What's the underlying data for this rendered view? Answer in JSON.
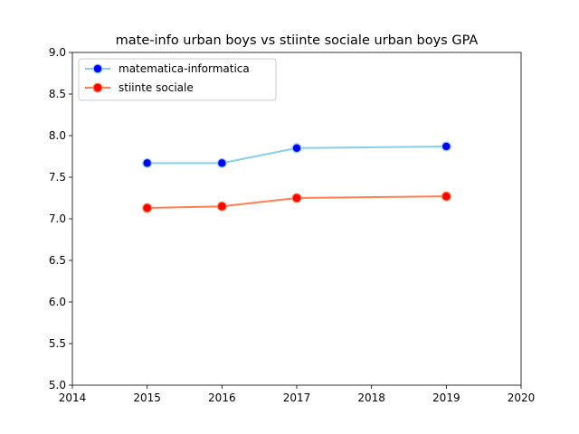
{
  "chart_data": {
    "type": "line",
    "title": "mate-info urban boys vs stiinte sociale urban boys GPA",
    "xlabel": "",
    "ylabel": "",
    "xlim": [
      2014,
      2020
    ],
    "ylim": [
      5.0,
      9.0
    ],
    "x_ticks": [
      "2014",
      "2015",
      "2016",
      "2017",
      "2018",
      "2019",
      "2020"
    ],
    "y_ticks": [
      "5.0",
      "5.5",
      "6.0",
      "6.5",
      "7.0",
      "7.5",
      "8.0",
      "8.5",
      "9.0"
    ],
    "grid": false,
    "legend_position": "top-left",
    "x": [
      2015,
      2016,
      2017,
      2019
    ],
    "series": [
      {
        "name": "matematica-informatica",
        "values": [
          7.67,
          7.67,
          7.85,
          7.87
        ],
        "line_color": "#87ceeb",
        "marker_color": "#0000ff"
      },
      {
        "name": "stiinte sociale",
        "values": [
          7.13,
          7.15,
          7.25,
          7.27
        ],
        "line_color": "#ff7f50",
        "marker_color": "#ff0000"
      }
    ]
  }
}
